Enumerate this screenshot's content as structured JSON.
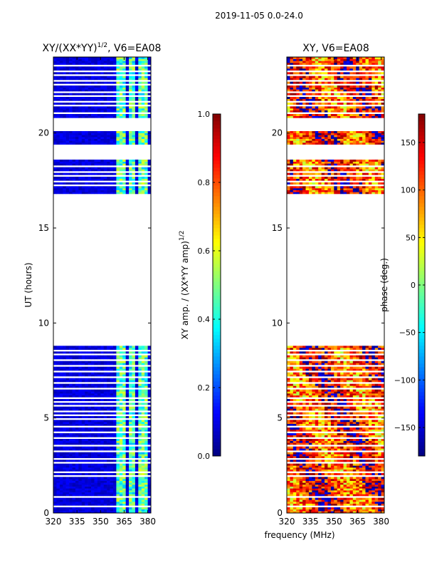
{
  "suptitle": "2019-11-05 0.0-24.0",
  "colors": {
    "mask": "#ffffff",
    "frame": "#000000",
    "jet": [
      "#00007f",
      "#0000ff",
      "#007fff",
      "#00ffff",
      "#7fff7f",
      "#ffff00",
      "#ff7f00",
      "#ff0000",
      "#7f0000"
    ]
  },
  "xlabel": "frequency (MHz)",
  "chart_data": [
    {
      "type": "heatmap",
      "title_main": "XY/(XX*YY)",
      "title_sup": "1/2",
      "title_rest": ", V6=EA08",
      "ylabel": "UT (hours)",
      "xlim": [
        320,
        382
      ],
      "ylim": [
        0,
        24
      ],
      "xticks": [
        320,
        335,
        350,
        365,
        380
      ],
      "yticks": [
        0,
        5,
        10,
        15,
        20
      ],
      "xtick_labels": [
        "320",
        "335",
        "350",
        "365",
        "380"
      ],
      "ytick_labels": [
        "0",
        "5",
        "10",
        "15",
        "20"
      ],
      "baseline_value": 0.05,
      "bright_band_mhz": [
        [
          361,
          366
        ],
        [
          369,
          372
        ],
        [
          375,
          379
        ]
      ],
      "bright_value": 0.45,
      "data_time_ranges_hours": [
        [
          0,
          8.8
        ],
        [
          16.8,
          18.6
        ],
        [
          19.4,
          20.1
        ],
        [
          20.8,
          24.0
        ]
      ],
      "flagged_times_hours": [
        0.35,
        0.75,
        1.9,
        2.1,
        2.6,
        2.8,
        3.2,
        3.5,
        3.9,
        4.2,
        4.55,
        4.9,
        5.1,
        5.35,
        5.6,
        5.8,
        5.95,
        6.5,
        6.8,
        7.1,
        7.4,
        7.7,
        8.0,
        8.3,
        8.5,
        17.2,
        17.45,
        17.7,
        17.95,
        18.2,
        21.0,
        21.4,
        21.6,
        21.9,
        22.1,
        22.5,
        22.7,
        23.0,
        23.2,
        23.5
      ],
      "colorbar": {
        "label_main": "XY amp. / (XX*YY amp)",
        "label_sup": "1/2",
        "range": [
          0.0,
          1.0
        ],
        "ticks": [
          0.0,
          0.2,
          0.4,
          0.6,
          0.8,
          1.0
        ],
        "tick_labels": [
          "0.0",
          "0.2",
          "0.4",
          "0.6",
          "0.8",
          "1.0"
        ]
      }
    },
    {
      "type": "heatmap",
      "title": "XY, V6=EA08",
      "xlim": [
        320,
        382
      ],
      "ylim": [
        0,
        24
      ],
      "xticks": [
        320,
        335,
        350,
        365,
        380
      ],
      "yticks": [
        0,
        5,
        10,
        15,
        20
      ],
      "xtick_labels": [
        "320",
        "335",
        "350",
        "365",
        "380"
      ],
      "ytick_labels": [
        "0",
        "5",
        "10",
        "15",
        "20"
      ],
      "value_description_range_deg": [
        -180,
        180
      ],
      "dominant_value_deg": 120,
      "data_time_ranges_hours": [
        [
          0,
          8.8
        ],
        [
          16.8,
          18.6
        ],
        [
          19.4,
          20.1
        ],
        [
          20.8,
          24.0
        ]
      ],
      "flagged_times_hours": [
        0.35,
        0.75,
        1.9,
        2.1,
        2.6,
        2.8,
        3.2,
        3.5,
        3.9,
        4.2,
        4.55,
        4.9,
        5.1,
        5.35,
        5.6,
        5.8,
        5.95,
        6.5,
        6.8,
        7.1,
        7.4,
        7.7,
        8.0,
        8.3,
        8.5,
        17.2,
        17.45,
        17.7,
        17.95,
        18.2,
        21.0,
        21.4,
        21.6,
        21.9,
        22.1,
        22.5,
        22.7,
        23.0,
        23.2,
        23.5
      ],
      "colorbar": {
        "label": "phase (deg.)",
        "range": [
          -180,
          180
        ],
        "ticks": [
          -150,
          -100,
          -50,
          0,
          50,
          100,
          150
        ],
        "tick_labels": [
          "−150",
          "−100",
          "−50",
          "0",
          "50",
          "100",
          "150"
        ]
      }
    }
  ]
}
